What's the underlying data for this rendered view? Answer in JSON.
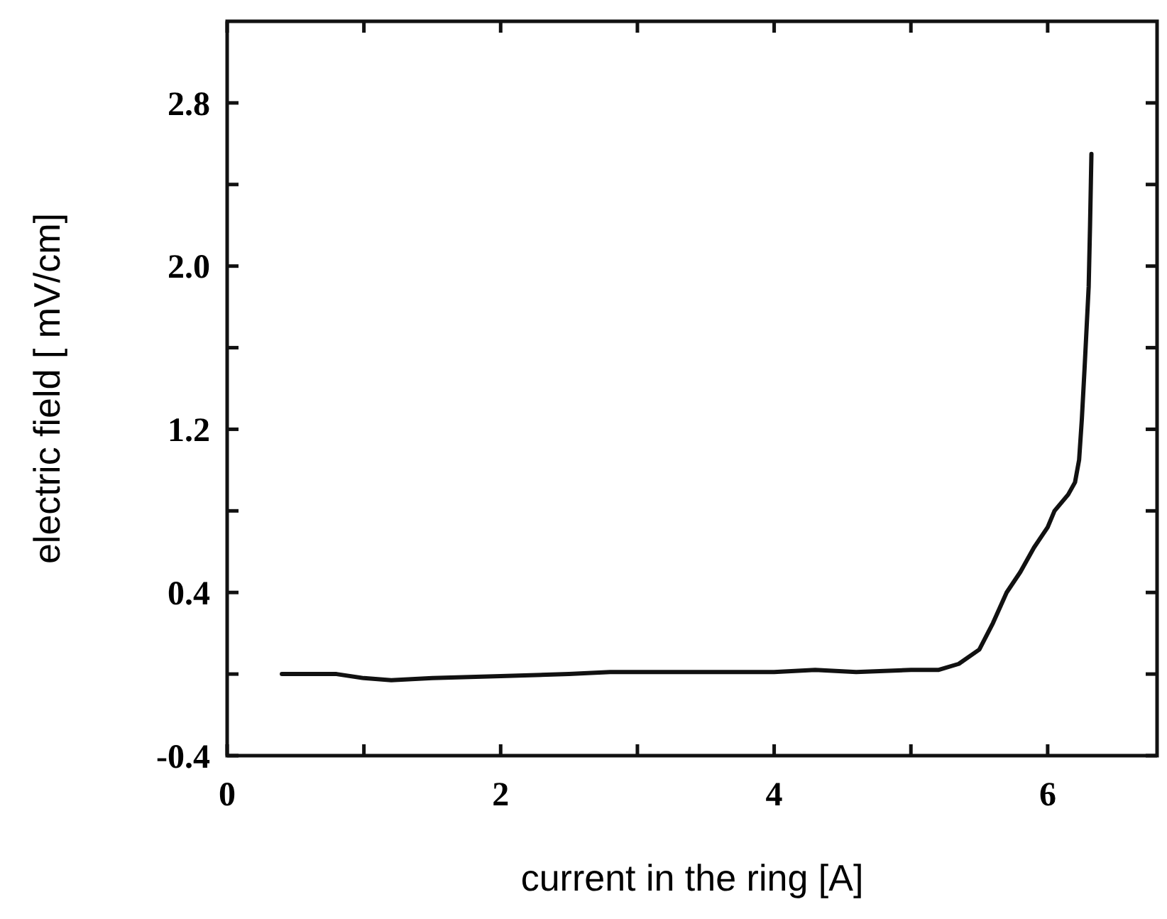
{
  "chart_data": {
    "type": "line",
    "xlabel": "current in the ring [A]",
    "ylabel": "electric field [ mV/cm]",
    "xlim": [
      0,
      6.8
    ],
    "ylim": [
      -0.4,
      3.2
    ],
    "xticks": [
      0,
      {
        "value": 1,
        "label": null
      },
      2,
      {
        "value": 3,
        "label": null
      },
      4,
      {
        "value": 5,
        "label": null
      },
      6
    ],
    "yticks": [
      -0.4,
      {
        "value": 0,
        "label": null
      },
      0.4,
      {
        "value": 0.8,
        "label": null
      },
      1.2,
      {
        "value": 1.6,
        "label": null
      },
      {
        "value": 2,
        "label": "2.0"
      },
      {
        "value": 2.4,
        "label": null
      },
      2.8
    ],
    "grid": false,
    "marker": "none",
    "line_style": "solid",
    "series": [
      {
        "color": "#111111",
        "x": [
          0.4,
          0.8,
          1.0,
          1.2,
          1.5,
          2.0,
          2.5,
          2.8,
          3.5,
          4.0,
          4.3,
          4.6,
          5.0,
          5.2,
          5.35,
          5.5,
          5.6,
          5.7,
          5.8,
          5.9,
          6.0,
          6.05,
          6.15,
          6.2,
          6.23,
          6.25,
          6.27,
          6.3,
          6.31,
          6.32
        ],
        "values": [
          0.0,
          0.0,
          -0.02,
          -0.03,
          -0.02,
          -0.01,
          0.0,
          0.01,
          0.01,
          0.01,
          0.02,
          0.01,
          0.02,
          0.02,
          0.05,
          0.12,
          0.25,
          0.4,
          0.5,
          0.62,
          0.72,
          0.8,
          0.88,
          0.94,
          1.05,
          1.25,
          1.5,
          1.9,
          2.2,
          2.55
        ]
      }
    ]
  }
}
